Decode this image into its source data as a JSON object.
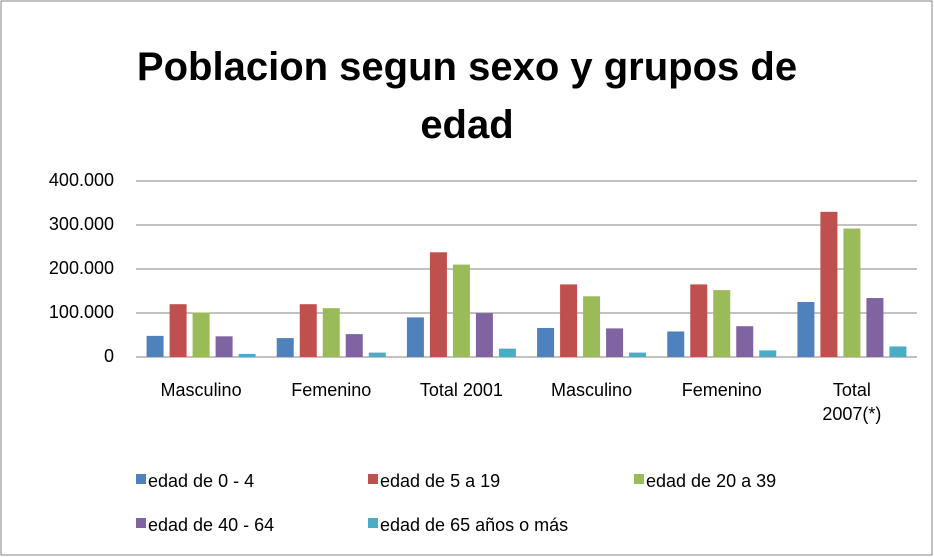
{
  "chart_data": {
    "type": "bar",
    "title": "Poblacion segun sexo y grupos de edad",
    "categories": [
      "Masculino",
      "Femenino",
      "Total 2001",
      "Masculino",
      "Femenino",
      "Total 2007(*)"
    ],
    "series": [
      {
        "name": "edad de 0 - 4",
        "color": "#4f81bd",
        "values": [
          48000,
          43000,
          90000,
          66000,
          58000,
          125000
        ]
      },
      {
        "name": "edad de 5 a 19",
        "color": "#c0504d",
        "values": [
          120000,
          120000,
          238000,
          165000,
          165000,
          330000
        ]
      },
      {
        "name": "edad de 20 a 39",
        "color": "#9bbb59",
        "values": [
          101000,
          111000,
          210000,
          138000,
          152000,
          292000
        ]
      },
      {
        "name": "edad de 40 - 64",
        "color": "#8064a2",
        "values": [
          47000,
          52000,
          99000,
          65000,
          70000,
          134000
        ]
      },
      {
        "name": "edad de 65 años o más",
        "color": "#4bacc6",
        "values": [
          7000,
          10000,
          19000,
          10000,
          15000,
          24000
        ]
      }
    ],
    "ylim": [
      0,
      400000
    ],
    "yticks": [
      0,
      {
        "value": 100000,
        "label": "100.000"
      },
      {
        "value": 200000,
        "label": "200.000"
      },
      {
        "value": 300000,
        "label": "300.000"
      },
      {
        "value": 400000,
        "label": "400.000"
      }
    ],
    "grid": true,
    "legend": "bottom"
  }
}
